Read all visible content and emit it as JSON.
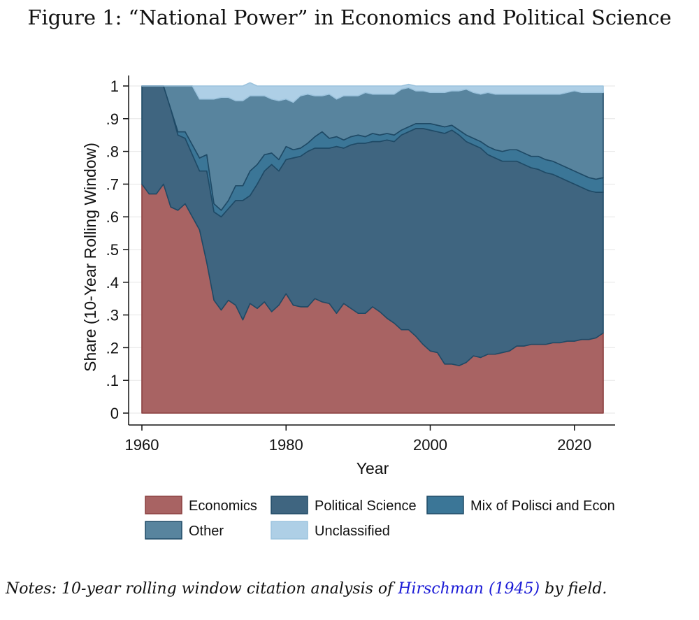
{
  "figure": {
    "title": "Figure 1: “National Power” in Economics and Political Science"
  },
  "notes": {
    "prefix": "Notes: 10-year rolling window citation analysis of ",
    "link_text": "Hirschman (1945)",
    "suffix": " by field."
  },
  "chart_data": {
    "type": "area",
    "stacked": true,
    "xlabel": "Year",
    "ylabel": "Share (10-Year Rolling Window)",
    "xlim": [
      1960,
      2025
    ],
    "ylim": [
      0,
      1
    ],
    "xticks": [
      1960,
      1980,
      2000,
      2020
    ],
    "yticks": [
      0,
      0.1,
      0.2,
      0.3,
      0.4,
      0.5,
      0.6,
      0.7,
      0.8,
      0.9,
      1
    ],
    "ytick_labels": [
      "0",
      ".1",
      ".2",
      ".3",
      ".4",
      ".5",
      ".6",
      ".7",
      ".8",
      ".9",
      "1"
    ],
    "grid": true,
    "legend_position": "bottom",
    "x": [
      1960,
      1961,
      1962,
      1963,
      1964,
      1965,
      1966,
      1967,
      1968,
      1969,
      1970,
      1971,
      1972,
      1973,
      1974,
      1975,
      1976,
      1977,
      1978,
      1979,
      1980,
      1981,
      1982,
      1983,
      1984,
      1985,
      1986,
      1987,
      1988,
      1989,
      1990,
      1991,
      1992,
      1993,
      1994,
      1995,
      1996,
      1997,
      1998,
      1999,
      2000,
      2001,
      2002,
      2003,
      2004,
      2005,
      2006,
      2007,
      2008,
      2009,
      2010,
      2011,
      2012,
      2013,
      2014,
      2015,
      2016,
      2017,
      2018,
      2019,
      2020,
      2021,
      2022,
      2023,
      2024
    ],
    "series": [
      {
        "name": "Economics",
        "color": "#a86363",
        "values": [
          0.7,
          0.67,
          0.67,
          0.7,
          0.63,
          0.62,
          0.64,
          0.6,
          0.56,
          0.46,
          0.345,
          0.315,
          0.345,
          0.33,
          0.285,
          0.335,
          0.32,
          0.34,
          0.31,
          0.33,
          0.365,
          0.33,
          0.325,
          0.325,
          0.35,
          0.34,
          0.335,
          0.305,
          0.335,
          0.32,
          0.305,
          0.305,
          0.325,
          0.31,
          0.29,
          0.275,
          0.255,
          0.255,
          0.235,
          0.21,
          0.19,
          0.185,
          0.15,
          0.15,
          0.145,
          0.155,
          0.175,
          0.17,
          0.18,
          0.18,
          0.185,
          0.19,
          0.205,
          0.205,
          0.21,
          0.21,
          0.21,
          0.215,
          0.215,
          0.22,
          0.22,
          0.225,
          0.225,
          0.23,
          0.245
        ]
      },
      {
        "name": "Political Science",
        "color": "#3f6580",
        "values": [
          0.3,
          0.33,
          0.33,
          0.3,
          0.3,
          0.23,
          0.2,
          0.19,
          0.18,
          0.28,
          0.27,
          0.285,
          0.28,
          0.32,
          0.365,
          0.33,
          0.38,
          0.4,
          0.45,
          0.41,
          0.41,
          0.45,
          0.46,
          0.475,
          0.46,
          0.47,
          0.475,
          0.51,
          0.475,
          0.5,
          0.52,
          0.52,
          0.505,
          0.52,
          0.545,
          0.555,
          0.595,
          0.605,
          0.635,
          0.66,
          0.675,
          0.675,
          0.705,
          0.715,
          0.705,
          0.675,
          0.645,
          0.64,
          0.61,
          0.6,
          0.585,
          0.58,
          0.565,
          0.555,
          0.54,
          0.535,
          0.525,
          0.515,
          0.505,
          0.49,
          0.48,
          0.465,
          0.455,
          0.445,
          0.43
        ]
      },
      {
        "name": "Mix of Polisci and Econ",
        "color": "#3b7697",
        "values": [
          0,
          0,
          0,
          0,
          0,
          0.01,
          0.02,
          0.03,
          0.04,
          0.05,
          0.025,
          0.02,
          0.025,
          0.045,
          0.045,
          0.075,
          0.06,
          0.05,
          0.035,
          0.035,
          0.04,
          0.025,
          0.025,
          0.025,
          0.035,
          0.05,
          0.03,
          0.03,
          0.025,
          0.025,
          0.025,
          0.02,
          0.025,
          0.02,
          0.02,
          0.02,
          0.015,
          0.015,
          0.015,
          0.015,
          0.02,
          0.02,
          0.02,
          0.015,
          0.015,
          0.02,
          0.02,
          0.02,
          0.025,
          0.025,
          0.03,
          0.035,
          0.035,
          0.035,
          0.035,
          0.04,
          0.04,
          0.04,
          0.04,
          0.04,
          0.04,
          0.04,
          0.04,
          0.04,
          0.045
        ]
      },
      {
        "name": "Other",
        "color": "#58849e",
        "values": [
          0,
          0,
          0,
          0,
          0.07,
          0.14,
          0.14,
          0.18,
          0.18,
          0.17,
          0.32,
          0.345,
          0.315,
          0.26,
          0.26,
          0.23,
          0.21,
          0.18,
          0.165,
          0.18,
          0.145,
          0.145,
          0.16,
          0.15,
          0.125,
          0.11,
          0.135,
          0.115,
          0.135,
          0.125,
          0.12,
          0.135,
          0.12,
          0.125,
          0.12,
          0.125,
          0.125,
          0.12,
          0.1,
          0.1,
          0.095,
          0.1,
          0.105,
          0.105,
          0.12,
          0.14,
          0.14,
          0.145,
          0.165,
          0.17,
          0.175,
          0.17,
          0.17,
          0.18,
          0.19,
          0.19,
          0.2,
          0.205,
          0.215,
          0.23,
          0.245,
          0.25,
          0.26,
          0.265,
          0.26
        ]
      },
      {
        "name": "Unclassified",
        "color": "#aecfe6",
        "values": [
          0,
          0,
          0,
          0,
          0,
          0,
          0,
          0,
          0.04,
          0.04,
          0.04,
          0.035,
          0.035,
          0.045,
          0.045,
          0.04,
          0.03,
          0.03,
          0.04,
          0.045,
          0.04,
          0.05,
          0.03,
          0.025,
          0.03,
          0.03,
          0.025,
          0.04,
          0.03,
          0.03,
          0.03,
          0.02,
          0.025,
          0.025,
          0.025,
          0.025,
          0.01,
          0.01,
          0.015,
          0.015,
          0.02,
          0.02,
          0.02,
          0.015,
          0.015,
          0.01,
          0.02,
          0.025,
          0.02,
          0.025,
          0.025,
          0.025,
          0.025,
          0.025,
          0.025,
          0.025,
          0.025,
          0.025,
          0.025,
          0.02,
          0.015,
          0.02,
          0.02,
          0.02,
          0.02
        ]
      }
    ]
  }
}
